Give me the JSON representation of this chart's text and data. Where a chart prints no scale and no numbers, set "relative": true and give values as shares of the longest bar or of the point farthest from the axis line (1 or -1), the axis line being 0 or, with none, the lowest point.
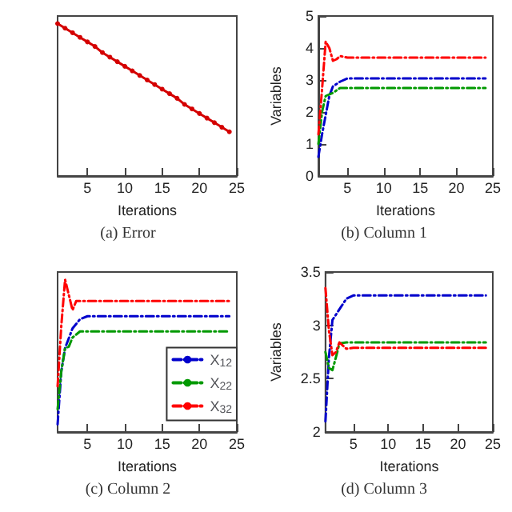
{
  "chart_data": [
    {
      "type": "line",
      "title": "(a) Error",
      "xlabel": "Iterations",
      "relative": true,
      "tick_labels": "x",
      "xlim": [
        1,
        25
      ],
      "xticks": [
        5,
        10,
        15,
        20,
        25
      ],
      "marker": "circle",
      "line_style": "solid",
      "grid": false,
      "legend": false,
      "series": [
        {
          "color": "#d40000",
          "x": [
            1,
            2,
            3,
            4,
            5,
            6,
            7,
            8,
            9,
            10,
            11,
            12,
            13,
            14,
            15,
            16,
            17,
            18,
            19,
            20,
            21,
            22,
            23,
            24
          ],
          "values": [
            1.0,
            0.97,
            0.94,
            0.91,
            0.88,
            0.85,
            0.81,
            0.78,
            0.75,
            0.72,
            0.69,
            0.66,
            0.63,
            0.6,
            0.57,
            0.54,
            0.51,
            0.47,
            0.44,
            0.41,
            0.38,
            0.35,
            0.32,
            0.29
          ]
        }
      ]
    },
    {
      "type": "line",
      "title": "(b) Column 1",
      "xlabel": "Iterations",
      "ylabel": "Variables",
      "xlim": [
        1,
        25
      ],
      "xticks": [
        5,
        10,
        15,
        20,
        25
      ],
      "ylim": [
        0,
        5
      ],
      "yticks": [
        0,
        1,
        2,
        3,
        4,
        5
      ],
      "marker": "none",
      "line_style": "dashed",
      "grid": false,
      "legend": false,
      "series": [
        {
          "color": "#0000cc",
          "x": [
            1,
            1.5,
            2,
            2.5,
            3,
            4,
            5,
            24
          ],
          "values": [
            0.6,
            1.3,
            1.9,
            2.5,
            2.8,
            2.95,
            3.05,
            3.05
          ]
        },
        {
          "color": "#009900",
          "x": [
            1,
            1.5,
            2,
            3,
            4,
            5,
            24
          ],
          "values": [
            1.0,
            2.0,
            2.5,
            2.6,
            2.75,
            2.75,
            2.75
          ]
        },
        {
          "color": "#ff0000",
          "x": [
            1,
            1.5,
            2,
            2.5,
            3,
            3.5,
            4,
            5,
            24
          ],
          "values": [
            1.3,
            2.7,
            4.2,
            4.0,
            3.6,
            3.65,
            3.75,
            3.7,
            3.7
          ]
        }
      ]
    },
    {
      "type": "line",
      "title": "(c) Column 2",
      "xlabel": "Iterations",
      "relative": true,
      "tick_labels": "x",
      "xlim": [
        1,
        25
      ],
      "xticks": [
        5,
        10,
        15,
        20,
        25
      ],
      "marker": "none",
      "line_style": "dashed",
      "grid": false,
      "legend": "right",
      "series": [
        {
          "name": "X$_{12}$",
          "color": "#0000cc",
          "x": [
            1,
            1.5,
            2,
            3,
            4,
            5,
            24
          ],
          "values": [
            0.05,
            0.4,
            0.55,
            0.68,
            0.74,
            0.76,
            0.76
          ]
        },
        {
          "name": "X$_{22}$",
          "color": "#009900",
          "x": [
            1,
            1.5,
            2,
            2.5,
            3,
            4,
            24
          ],
          "values": [
            0.15,
            0.4,
            0.55,
            0.56,
            0.62,
            0.66,
            0.66
          ]
        },
        {
          "name": "X$_{32}$",
          "color": "#ff0000",
          "x": [
            1,
            1.5,
            2,
            2.5,
            3,
            3.5,
            4,
            24
          ],
          "values": [
            0.3,
            0.7,
            1.0,
            0.9,
            0.8,
            0.86,
            0.86,
            0.86
          ]
        }
      ]
    },
    {
      "type": "line",
      "title": "(d) Column 3",
      "xlabel": "Iterations",
      "ylabel": "Variables",
      "xlim": [
        1,
        25
      ],
      "xticks": [
        5,
        10,
        15,
        20,
        25
      ],
      "ylim": [
        2,
        3.5
      ],
      "yticks": [
        2,
        2.5,
        3,
        3.5
      ],
      "marker": "none",
      "line_style": "dashed",
      "grid": false,
      "legend": false,
      "series": [
        {
          "color": "#0000cc",
          "x": [
            1,
            1.5,
            2,
            3,
            4,
            5,
            24
          ],
          "values": [
            2.1,
            2.7,
            3.05,
            3.15,
            3.25,
            3.28,
            3.28
          ]
        },
        {
          "color": "#009900",
          "x": [
            1,
            1.5,
            2,
            2.5,
            3,
            4,
            24
          ],
          "values": [
            2.75,
            2.6,
            2.58,
            2.7,
            2.83,
            2.84,
            2.84
          ]
        },
        {
          "color": "#ff0000",
          "x": [
            1,
            1.5,
            2,
            2.5,
            3,
            4,
            5,
            24
          ],
          "values": [
            3.35,
            2.95,
            2.72,
            2.75,
            2.84,
            2.78,
            2.79,
            2.79
          ]
        }
      ]
    }
  ]
}
